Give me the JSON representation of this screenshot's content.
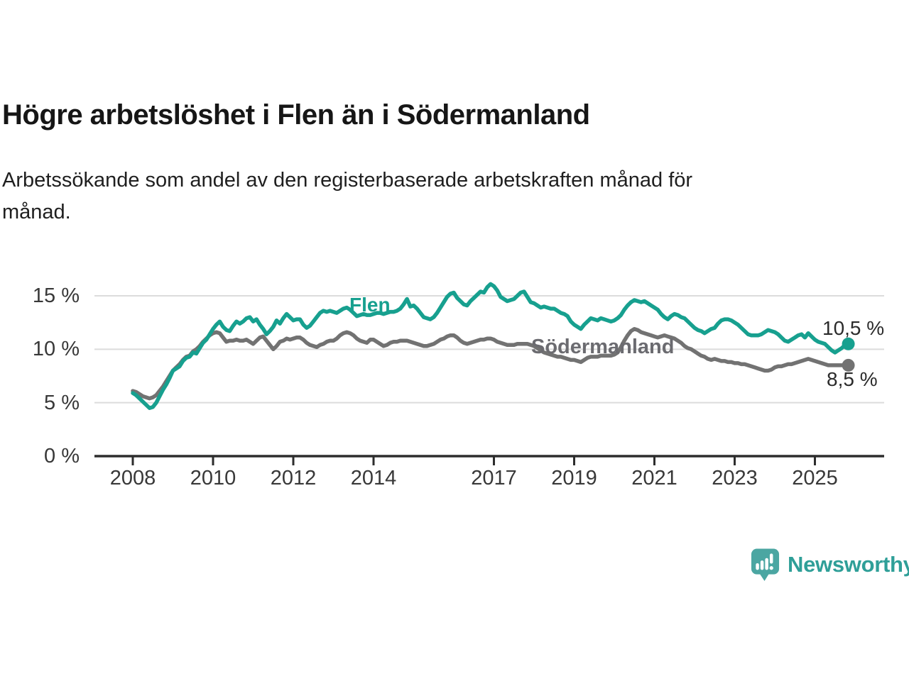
{
  "header": {
    "title": "Högre arbetslöshet i Flen än i Södermanland",
    "subtitle": "Arbetssökande som andel av den registerbaserade arbetskraften månad för\nmånad."
  },
  "brand": {
    "name": "Newsworthy",
    "icon": "bar-chart-speech-bubble-icon",
    "icon_color": "#4BA6A2",
    "text_color": "#2F9F98"
  },
  "chart_data": {
    "type": "line",
    "unit": "%",
    "title": "Högre arbetslöshet i Flen än i Södermanland",
    "xlabel": "",
    "ylabel": "",
    "x_start_year": 2008.0,
    "x_step_years": 0.0833333,
    "x_ticks": [
      2008,
      2010,
      2012,
      2014,
      2017,
      2019,
      2021,
      2023,
      2025
    ],
    "y_ticks": [
      {
        "value": 0,
        "label": "0 %"
      },
      {
        "value": 5,
        "label": "5 %"
      },
      {
        "value": 10,
        "label": "10 %"
      },
      {
        "value": 15,
        "label": "15 %"
      }
    ],
    "ylim": [
      0,
      16.5
    ],
    "xlim": [
      2008,
      2026.6
    ],
    "grid": "horizontal",
    "legend_position": "inline-labels",
    "colors": {
      "grid": "#DCDCDC",
      "axis": "#2D2D2D",
      "tick_text": "#383838",
      "annotation_text": "#2B2B2B"
    },
    "series": [
      {
        "name": "Flen",
        "color": "#17A08F",
        "label_color": "#17A08F",
        "end_label": "10,5 %",
        "last_value": 10.5,
        "values": [
          5.9,
          5.7,
          5.4,
          5.1,
          4.8,
          4.5,
          4.6,
          5.0,
          5.6,
          6.2,
          6.7,
          7.3,
          8.0,
          8.2,
          8.4,
          8.9,
          9.2,
          9.3,
          9.7,
          9.6,
          10.1,
          10.6,
          10.9,
          11.4,
          11.9,
          12.3,
          12.6,
          12.1,
          11.8,
          11.7,
          12.2,
          12.6,
          12.4,
          12.6,
          12.9,
          13.0,
          12.6,
          12.8,
          12.3,
          11.9,
          11.4,
          11.7,
          12.1,
          12.7,
          12.4,
          12.9,
          13.3,
          13.0,
          12.7,
          12.8,
          12.8,
          12.3,
          12.0,
          12.2,
          12.6,
          13.0,
          13.4,
          13.6,
          13.5,
          13.6,
          13.5,
          13.4,
          13.6,
          13.8,
          13.9,
          13.7,
          13.4,
          13.1,
          13.2,
          13.3,
          13.2,
          13.2,
          13.3,
          13.4,
          13.4,
          13.3,
          13.4,
          13.5,
          13.5,
          13.6,
          13.8,
          14.2,
          14.7,
          14.0,
          14.1,
          13.8,
          13.4,
          13.0,
          12.9,
          12.8,
          13.0,
          13.4,
          13.9,
          14.4,
          14.9,
          15.2,
          15.3,
          14.8,
          14.5,
          14.2,
          14.1,
          14.5,
          14.8,
          15.1,
          15.4,
          15.3,
          15.8,
          16.1,
          15.9,
          15.5,
          14.9,
          14.7,
          14.5,
          14.6,
          14.7,
          15.0,
          15.3,
          15.4,
          14.9,
          14.4,
          14.3,
          14.1,
          13.9,
          14.0,
          13.9,
          13.8,
          13.8,
          13.6,
          13.4,
          13.3,
          13.1,
          12.6,
          12.3,
          12.1,
          11.9,
          12.3,
          12.6,
          12.9,
          12.8,
          12.7,
          12.9,
          12.8,
          12.7,
          12.6,
          12.7,
          12.9,
          13.2,
          13.7,
          14.1,
          14.4,
          14.6,
          14.5,
          14.4,
          14.5,
          14.3,
          14.1,
          13.9,
          13.7,
          13.3,
          13.0,
          12.8,
          13.1,
          13.3,
          13.2,
          13.0,
          12.9,
          12.6,
          12.3,
          12.0,
          11.8,
          11.7,
          11.5,
          11.7,
          11.9,
          12.0,
          12.4,
          12.7,
          12.8,
          12.8,
          12.7,
          12.5,
          12.3,
          12.0,
          11.7,
          11.4,
          11.3,
          11.3,
          11.3,
          11.4,
          11.6,
          11.8,
          11.7,
          11.6,
          11.4,
          11.1,
          10.8,
          10.7,
          10.9,
          11.1,
          11.3,
          11.4,
          11.1,
          11.5,
          11.2,
          10.9,
          10.7,
          10.6,
          10.5,
          10.2,
          9.9,
          9.7,
          9.9,
          10.1,
          10.4,
          10.5
        ]
      },
      {
        "name": "Södermanland",
        "color": "#727272",
        "label_color": "#6B6B70",
        "end_label": "8,5 %",
        "last_value": 8.5,
        "values": [
          6.1,
          6.0,
          5.8,
          5.6,
          5.5,
          5.4,
          5.5,
          5.7,
          6.1,
          6.5,
          7.0,
          7.5,
          8.0,
          8.3,
          8.6,
          9.0,
          9.3,
          9.4,
          9.8,
          10.0,
          10.3,
          10.7,
          11.0,
          11.3,
          11.5,
          11.6,
          11.5,
          11.1,
          10.7,
          10.8,
          10.8,
          10.9,
          10.8,
          10.8,
          10.9,
          10.7,
          10.5,
          10.8,
          11.1,
          11.2,
          10.8,
          10.4,
          10.0,
          10.3,
          10.7,
          10.8,
          11.0,
          10.9,
          11.0,
          11.1,
          11.1,
          10.9,
          10.6,
          10.4,
          10.3,
          10.2,
          10.4,
          10.5,
          10.7,
          10.8,
          10.8,
          11.0,
          11.3,
          11.5,
          11.6,
          11.5,
          11.3,
          11.0,
          10.8,
          10.7,
          10.6,
          10.9,
          10.9,
          10.7,
          10.5,
          10.3,
          10.4,
          10.6,
          10.7,
          10.7,
          10.8,
          10.8,
          10.8,
          10.7,
          10.6,
          10.5,
          10.4,
          10.3,
          10.3,
          10.4,
          10.5,
          10.7,
          10.9,
          11.0,
          11.2,
          11.3,
          11.3,
          11.1,
          10.8,
          10.6,
          10.5,
          10.6,
          10.7,
          10.8,
          10.9,
          10.9,
          11.0,
          11.0,
          10.9,
          10.7,
          10.6,
          10.5,
          10.4,
          10.4,
          10.4,
          10.5,
          10.5,
          10.5,
          10.5,
          10.4,
          10.3,
          10.1,
          9.9,
          9.7,
          9.6,
          9.5,
          9.4,
          9.3,
          9.3,
          9.2,
          9.1,
          9.0,
          9.0,
          8.9,
          8.8,
          9.0,
          9.2,
          9.3,
          9.3,
          9.3,
          9.4,
          9.4,
          9.4,
          9.4,
          9.5,
          9.7,
          10.2,
          10.8,
          11.3,
          11.7,
          11.9,
          11.8,
          11.6,
          11.5,
          11.4,
          11.3,
          11.2,
          11.1,
          11.2,
          11.3,
          11.2,
          11.1,
          11.0,
          10.8,
          10.6,
          10.3,
          10.1,
          10.0,
          9.8,
          9.6,
          9.4,
          9.3,
          9.1,
          9.0,
          9.1,
          9.0,
          8.9,
          8.9,
          8.8,
          8.8,
          8.7,
          8.7,
          8.6,
          8.6,
          8.5,
          8.4,
          8.3,
          8.2,
          8.1,
          8.0,
          8.0,
          8.1,
          8.3,
          8.4,
          8.4,
          8.5,
          8.6,
          8.6,
          8.7,
          8.8,
          8.9,
          9.0,
          9.1,
          9.0,
          8.9,
          8.8,
          8.7,
          8.6,
          8.5,
          8.5,
          8.5,
          8.5,
          8.5,
          8.5,
          8.5
        ]
      }
    ]
  }
}
